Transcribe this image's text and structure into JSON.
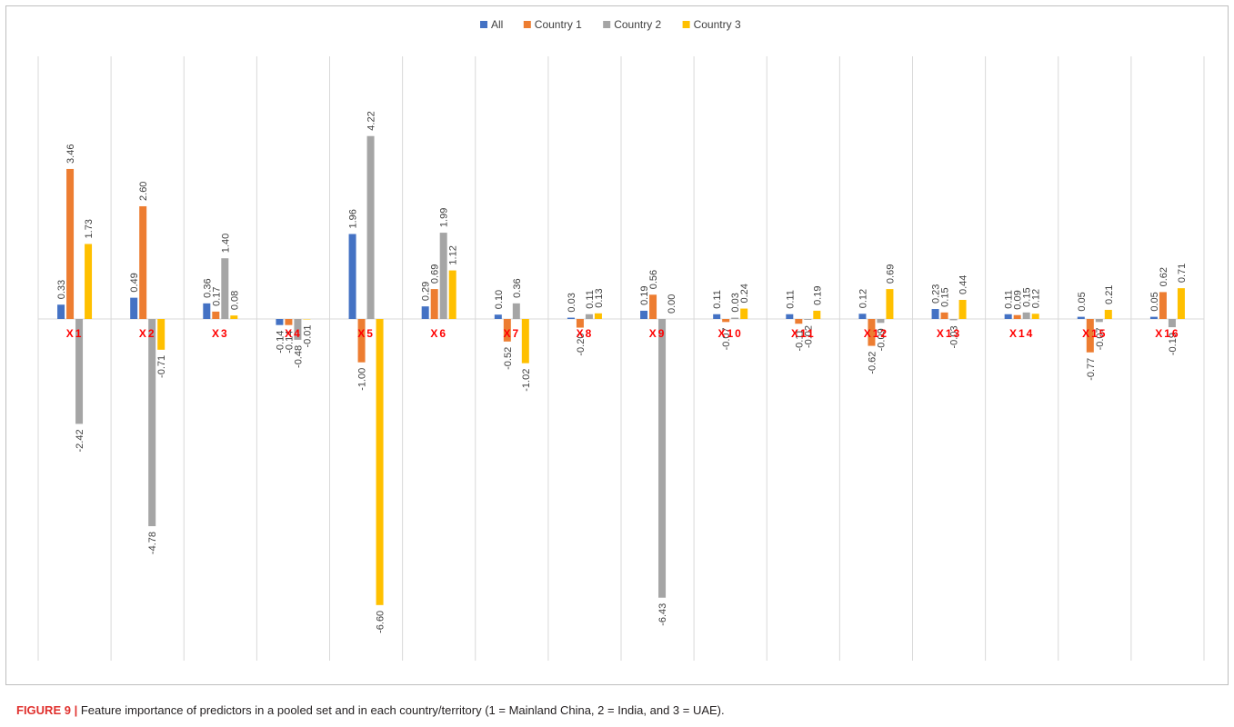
{
  "chart_data": {
    "type": "bar",
    "categories": [
      "X1",
      "X2",
      "X3",
      "X4",
      "X5",
      "X6",
      "X7",
      "X8",
      "X9",
      "X10",
      "X11",
      "X12",
      "X13",
      "X14",
      "X15",
      "X16"
    ],
    "series": [
      {
        "name": "All",
        "color": "#4472c4",
        "values": [
          0.33,
          0.49,
          0.36,
          -0.14,
          1.96,
          0.29,
          0.1,
          0.03,
          0.19,
          0.11,
          0.11,
          0.12,
          0.23,
          0.11,
          0.05,
          0.05
        ]
      },
      {
        "name": "Country 1",
        "color": "#ed7d31",
        "values": [
          3.46,
          2.6,
          0.17,
          -0.14,
          -1.0,
          0.69,
          -0.52,
          -0.2,
          0.56,
          -0.07,
          -0.11,
          -0.62,
          0.15,
          0.09,
          -0.77,
          0.62
        ]
      },
      {
        "name": "Country 2",
        "color": "#a5a5a5",
        "values": [
          -2.42,
          -4.78,
          1.4,
          -0.48,
          4.22,
          1.99,
          0.36,
          0.11,
          -6.43,
          0.03,
          -0.02,
          -0.09,
          -0.03,
          0.15,
          -0.07,
          -0.19
        ]
      },
      {
        "name": "Country 3",
        "color": "#ffc000",
        "values": [
          1.73,
          -0.71,
          0.08,
          -0.01,
          -6.6,
          1.12,
          -1.02,
          0.13,
          0.0,
          0.24,
          0.19,
          0.69,
          0.44,
          0.12,
          0.21,
          0.71
        ]
      }
    ],
    "value_labels": [
      [
        "0.33",
        "0.49",
        "0.36",
        "-0.14",
        "1.96",
        "0.29",
        "0.10",
        "0.03",
        "0.19",
        "0.11",
        "0.11",
        "0.12",
        "0.23",
        "0.11",
        "0.05",
        "0.05"
      ],
      [
        "3.46",
        "2.60",
        "0.17",
        "-0.14",
        "-1.00",
        "0.69",
        "-0.52",
        "-0.20",
        "0.56",
        "-0.07",
        "-0.11",
        "-0.62",
        "0.15",
        "0.09",
        "-0.77",
        "0.62"
      ],
      [
        "-2.42",
        "-4.78",
        "1.40",
        "-0.48",
        "4.22",
        "1.99",
        "0.36",
        "0.11",
        "-6.43",
        "0.03",
        "-0.02",
        "-0.09",
        "-0.03",
        "0.15",
        "-0.07",
        "-0.19"
      ],
      [
        "1.73",
        "-0.71",
        "0.08",
        "-0.01",
        "-6.60",
        "1.12",
        "-1.02",
        "0.13",
        "0.00",
        "0.24",
        "0.19",
        "0.69",
        "0.44",
        "0.12",
        "0.21",
        "0.71"
      ]
    ],
    "ylim": [
      -7.3,
      4.9
    ],
    "legend_position": "top",
    "grid": "vertical category separators",
    "title": "",
    "xlabel": "",
    "ylabel": ""
  },
  "caption": {
    "label": "FIGURE 9 |",
    "text": " Feature importance of predictors in a pooled set and in each country/territory (1 = Mainland China, 2 = India, and 3 = UAE)."
  }
}
